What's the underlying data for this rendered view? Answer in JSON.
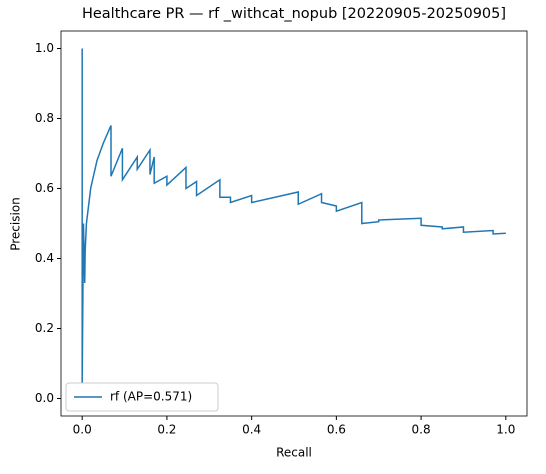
{
  "chart_data": {
    "type": "line",
    "title": "Healthcare PR — rf _withcat_nopub [20220905-20250905]",
    "x_label": "Recall",
    "y_label": "Precision",
    "xlim": [
      -0.05,
      1.05
    ],
    "ylim": [
      -0.05,
      1.05
    ],
    "xticks": [
      {
        "value": 0,
        "label": "0.0"
      },
      0.2,
      0.4,
      0.6,
      0.8,
      {
        "value": 1,
        "label": "1.0"
      }
    ],
    "yticks": [
      {
        "value": 0,
        "label": "0.0"
      },
      0.2,
      0.4,
      0.6,
      0.8,
      {
        "value": 1,
        "label": "1.0"
      }
    ],
    "legend": "lower left",
    "series": [
      {
        "name": "rf (AP=0.571)",
        "color": "#1f77b4",
        "x": [
          0,
          0,
          0.003,
          0.006,
          0.007,
          0.01,
          0.02,
          0.035,
          0.05,
          0.068,
          0.068,
          0.095,
          0.095,
          0.13,
          0.13,
          0.16,
          0.16,
          0.17,
          0.17,
          0.2,
          0.2,
          0.245,
          0.245,
          0.27,
          0.27,
          0.325,
          0.325,
          0.35,
          0.35,
          0.4,
          0.4,
          0.51,
          0.51,
          0.565,
          0.565,
          0.6,
          0.6,
          0.66,
          0.66,
          0.7,
          0.7,
          0.8,
          0.8,
          0.85,
          0.85,
          0.9,
          0.9,
          0.97,
          0.97,
          1.0
        ],
        "values": [
          1.0,
          0.04,
          0.5,
          0.33,
          0.42,
          0.5,
          0.6,
          0.68,
          0.73,
          0.78,
          0.635,
          0.715,
          0.625,
          0.69,
          0.655,
          0.71,
          0.64,
          0.69,
          0.615,
          0.635,
          0.61,
          0.66,
          0.6,
          0.62,
          0.58,
          0.625,
          0.575,
          0.575,
          0.56,
          0.58,
          0.56,
          0.59,
          0.555,
          0.585,
          0.56,
          0.55,
          0.535,
          0.56,
          0.5,
          0.505,
          0.51,
          0.515,
          0.495,
          0.49,
          0.485,
          0.49,
          0.475,
          0.48,
          0.47,
          0.472
        ]
      }
    ]
  }
}
